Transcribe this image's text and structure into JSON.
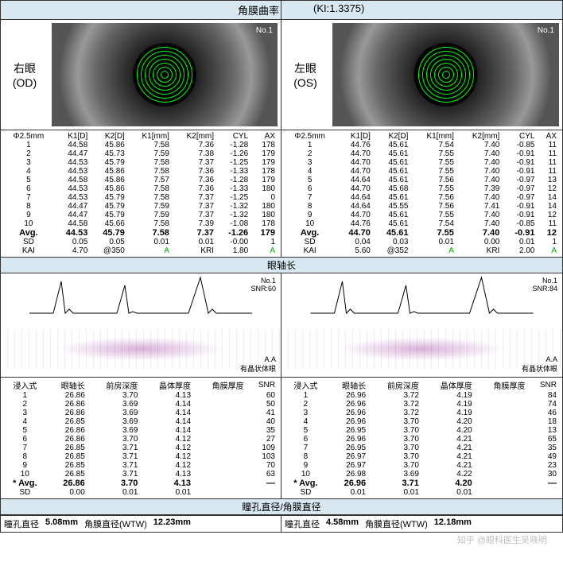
{
  "header": {
    "title": "角膜曲率",
    "ki": "(KI:1.3375)"
  },
  "eyes": {
    "right": {
      "label1": "右眼",
      "label2": "(OD)"
    },
    "left": {
      "label1": "左眼",
      "label2": "(OS)"
    }
  },
  "kerato": {
    "headers": [
      "Φ2.5mm",
      "K1[D]",
      "K2[D]",
      "K1[mm]",
      "K2[mm]",
      "CYL",
      "AX"
    ],
    "od_rows": [
      [
        "1",
        "44.58",
        "45.86",
        "7.58",
        "7.36",
        "-1.28",
        "178"
      ],
      [
        "2",
        "44.47",
        "45.73",
        "7.59",
        "7.38",
        "-1.26",
        "179"
      ],
      [
        "3",
        "44.53",
        "45.79",
        "7.58",
        "7.37",
        "-1.25",
        "179"
      ],
      [
        "4",
        "44.53",
        "45.86",
        "7.58",
        "7.36",
        "-1.33",
        "178"
      ],
      [
        "5",
        "44.58",
        "45.86",
        "7.57",
        "7.36",
        "-1.28",
        "179"
      ],
      [
        "6",
        "44.53",
        "45.86",
        "7.58",
        "7.36",
        "-1.33",
        "180"
      ],
      [
        "7",
        "44.53",
        "45.79",
        "7.58",
        "7.37",
        "-1.25",
        "0"
      ],
      [
        "8",
        "44.47",
        "45.79",
        "7.59",
        "7.37",
        "-1.32",
        "180"
      ],
      [
        "9",
        "44.47",
        "45.79",
        "7.59",
        "7.37",
        "-1.32",
        "180"
      ],
      [
        "10",
        "44.58",
        "45.66",
        "7.58",
        "7.39",
        "-1.08",
        "178"
      ]
    ],
    "od_avg": [
      "Avg.",
      "44.53",
      "45.79",
      "7.58",
      "7.37",
      "-1.26",
      "179"
    ],
    "od_sd": [
      "SD",
      "0.05",
      "0.05",
      "0.01",
      "0.01",
      "-0.00",
      "1"
    ],
    "od_kai": [
      "KAI",
      "4.70",
      "@350",
      "A",
      "KRI",
      "1.80",
      "A"
    ],
    "os_rows": [
      [
        "1",
        "44.76",
        "45.61",
        "7.54",
        "7.40",
        "-0.85",
        "11"
      ],
      [
        "2",
        "44.70",
        "45.61",
        "7.55",
        "7.40",
        "-0.91",
        "11"
      ],
      [
        "3",
        "44.70",
        "45.61",
        "7.55",
        "7.40",
        "-0.91",
        "11"
      ],
      [
        "4",
        "44.70",
        "45.61",
        "7.55",
        "7.40",
        "-0.91",
        "11"
      ],
      [
        "5",
        "44.64",
        "45.61",
        "7.56",
        "7.40",
        "-0.97",
        "13"
      ],
      [
        "6",
        "44.70",
        "45.68",
        "7.55",
        "7.39",
        "-0.97",
        "12"
      ],
      [
        "7",
        "44.64",
        "45.61",
        "7.56",
        "7.40",
        "-0.97",
        "14"
      ],
      [
        "8",
        "44.64",
        "45.55",
        "7.56",
        "7.41",
        "-0.91",
        "14"
      ],
      [
        "9",
        "44.70",
        "45.61",
        "7.55",
        "7.40",
        "-0.91",
        "12"
      ],
      [
        "10",
        "44.76",
        "45.61",
        "7.54",
        "7.40",
        "-0.85",
        "11"
      ]
    ],
    "os_avg": [
      "Avg.",
      "44.70",
      "45.61",
      "7.55",
      "7.40",
      "-0.91",
      "12"
    ],
    "os_sd": [
      "SD",
      "0.04",
      "0.03",
      "0.01",
      "0.00",
      "0.01",
      "1"
    ],
    "os_kai": [
      "KAI",
      "5.60",
      "@352",
      "A",
      "KRI",
      "2.00",
      "A"
    ]
  },
  "axial_header": "眼轴长",
  "axial_labels": {
    "od_no": "No.1",
    "od_snr": "SNR:60",
    "od_aa": "A.A",
    "od_lens": "有晶状体眼",
    "os_no": "No.1",
    "os_snr": "SNR:84",
    "os_aa": "A.A",
    "os_lens": "有晶状体眼"
  },
  "axial": {
    "headers": [
      "浸入式",
      "眼轴长",
      "前房深度",
      "晶体厚度",
      "角膜厚度",
      "SNR"
    ],
    "od_rows": [
      [
        "1",
        "26.86",
        "3.70",
        "4.13",
        "",
        "60"
      ],
      [
        "2",
        "26.86",
        "3.69",
        "4.14",
        "",
        "50"
      ],
      [
        "3",
        "26.86",
        "3.69",
        "4.14",
        "",
        "41"
      ],
      [
        "4",
        "26.85",
        "3.69",
        "4.14",
        "",
        "40"
      ],
      [
        "5",
        "26.86",
        "3.69",
        "4.14",
        "",
        "35"
      ],
      [
        "6",
        "26.86",
        "3.70",
        "4.12",
        "",
        "27"
      ],
      [
        "7",
        "26.85",
        "3.71",
        "4.12",
        "",
        "109"
      ],
      [
        "8",
        "26.85",
        "3.71",
        "4.12",
        "",
        "103"
      ],
      [
        "9",
        "26.85",
        "3.71",
        "4.12",
        "",
        "70"
      ],
      [
        "10",
        "26.85",
        "3.71",
        "4.13",
        "",
        "63"
      ]
    ],
    "od_avg": [
      "* Avg.",
      "26.86",
      "3.70",
      "4.13",
      "",
      "—"
    ],
    "od_sd": [
      "SD",
      "0.00",
      "0.01",
      "0.01",
      "",
      ""
    ],
    "os_rows": [
      [
        "1",
        "26.96",
        "3.72",
        "4.19",
        "",
        "84"
      ],
      [
        "2",
        "26.96",
        "3.72",
        "4.19",
        "",
        "74"
      ],
      [
        "3",
        "26.96",
        "3.72",
        "4.19",
        "",
        "46"
      ],
      [
        "4",
        "26.96",
        "3.70",
        "4.20",
        "",
        "18"
      ],
      [
        "5",
        "26.95",
        "3.70",
        "4.20",
        "",
        "13"
      ],
      [
        "6",
        "26.96",
        "3.70",
        "4.21",
        "",
        "65"
      ],
      [
        "7",
        "26.95",
        "3.70",
        "4.21",
        "",
        "35"
      ],
      [
        "8",
        "26.97",
        "3.70",
        "4.21",
        "",
        "49"
      ],
      [
        "9",
        "26.97",
        "3.70",
        "4.21",
        "",
        "23"
      ],
      [
        "10",
        "26.98",
        "3.69",
        "4.22",
        "",
        "30"
      ]
    ],
    "os_avg": [
      "* Avg.",
      "26.96",
      "3.71",
      "4.20",
      "",
      "—"
    ],
    "os_sd": [
      "SD",
      "0.01",
      "0.01",
      "0.01",
      "",
      ""
    ]
  },
  "footer": {
    "header": "瞳孔直径/角膜直径",
    "od_pupil": "瞳孔直径",
    "od_pupil_val": "5.08mm",
    "od_cornea": "角膜直径(WTW)",
    "od_cornea_val": "12.23mm",
    "os_pupil": "瞳孔直径",
    "os_pupil_val": "4.58mm",
    "os_cornea": "角膜直径(WTW)",
    "os_cornea_val": "12.18mm"
  },
  "watermark": "知乎 @眼科医生吴晓明"
}
